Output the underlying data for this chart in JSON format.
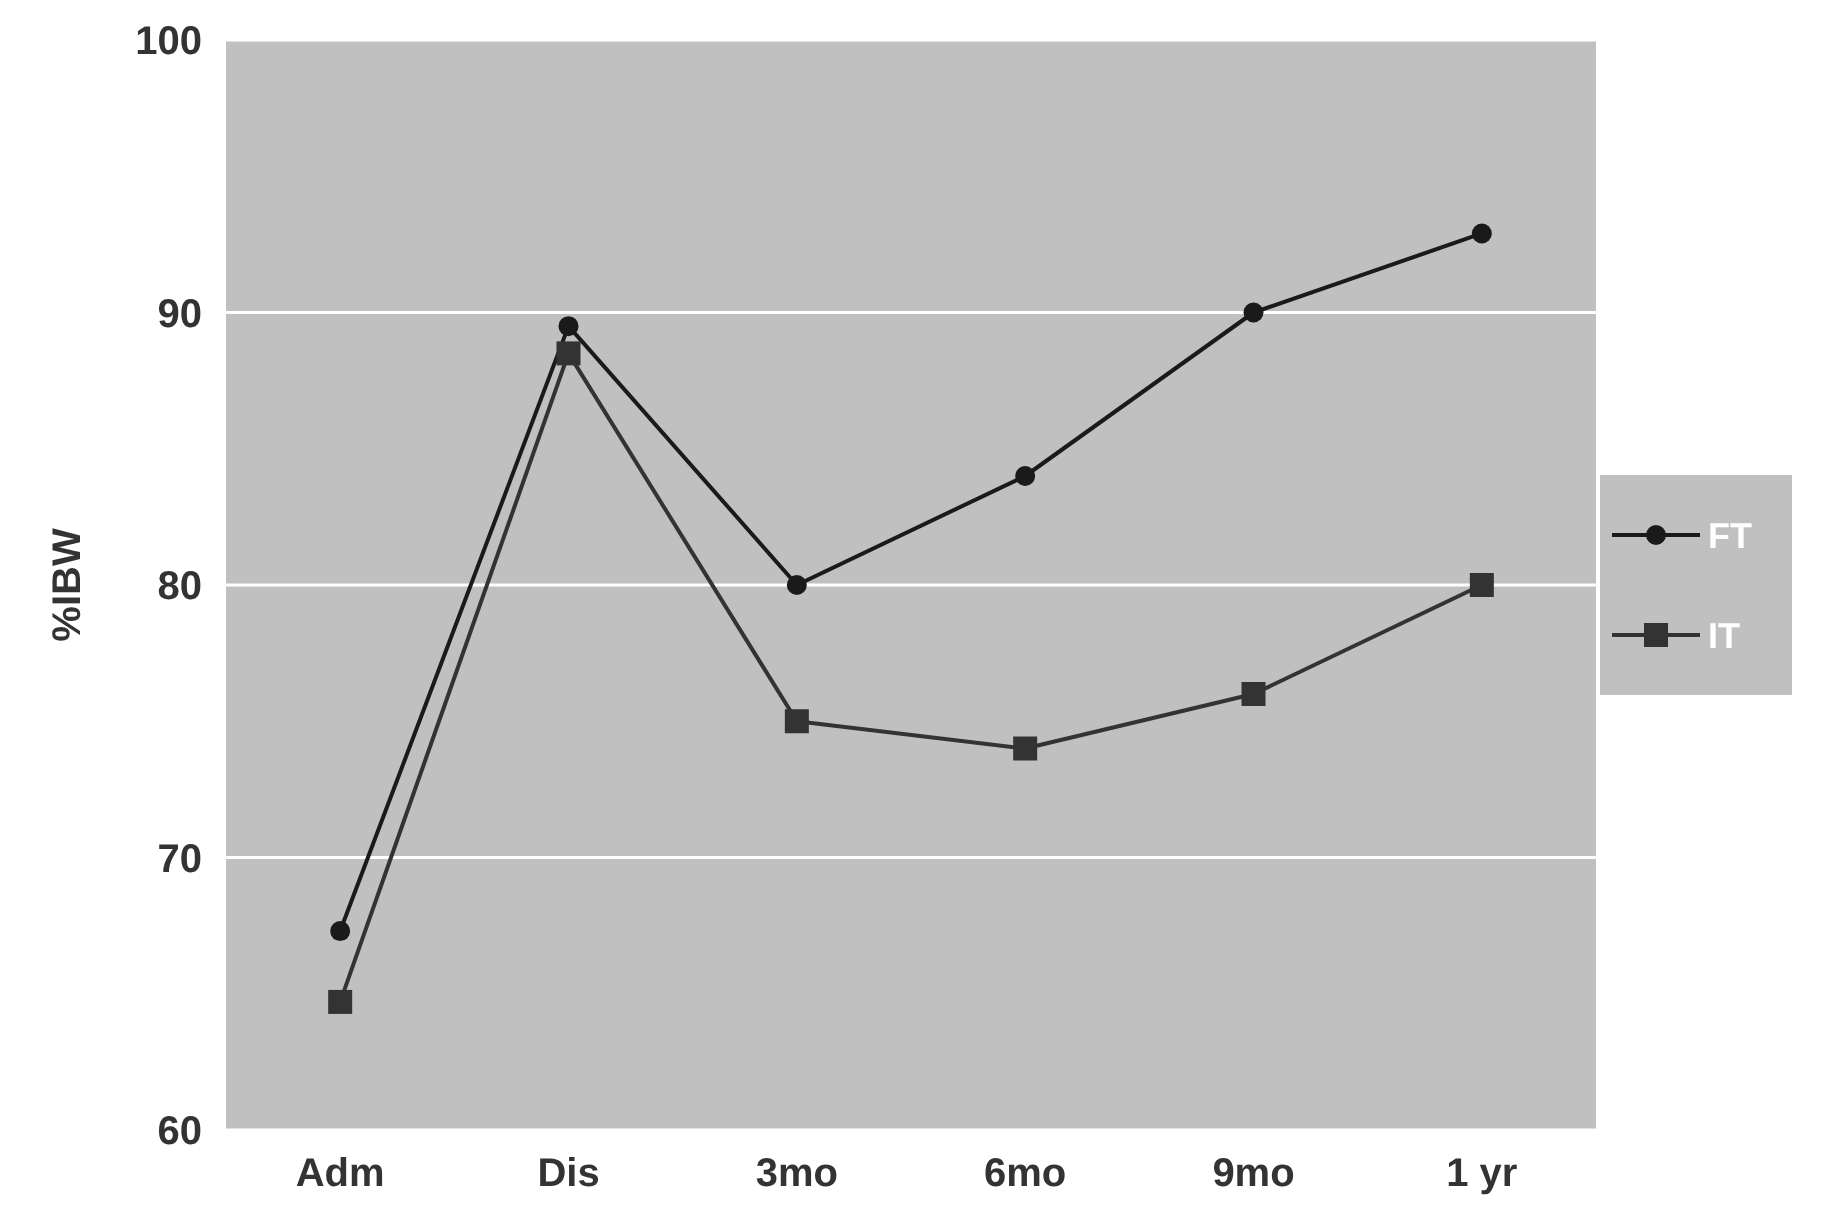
{
  "chart_data": {
    "type": "line",
    "ylabel": "%IBW",
    "categories": [
      "Adm",
      "Dis",
      "3mo",
      "6mo",
      "9mo",
      "1 yr"
    ],
    "series": [
      {
        "name": "FT",
        "color": "#1a1a1a",
        "marker": "circle",
        "values": [
          67.3,
          89.5,
          80,
          84,
          90,
          92.9
        ]
      },
      {
        "name": "IT",
        "color": "#333333",
        "marker": "square",
        "values": [
          64.7,
          88.5,
          75,
          74,
          76,
          80
        ]
      }
    ],
    "ylim": [
      60,
      100
    ],
    "yticks": [
      60,
      70,
      80,
      90,
      100
    ],
    "grid": "y",
    "legend": "right",
    "line_style": "solid"
  }
}
